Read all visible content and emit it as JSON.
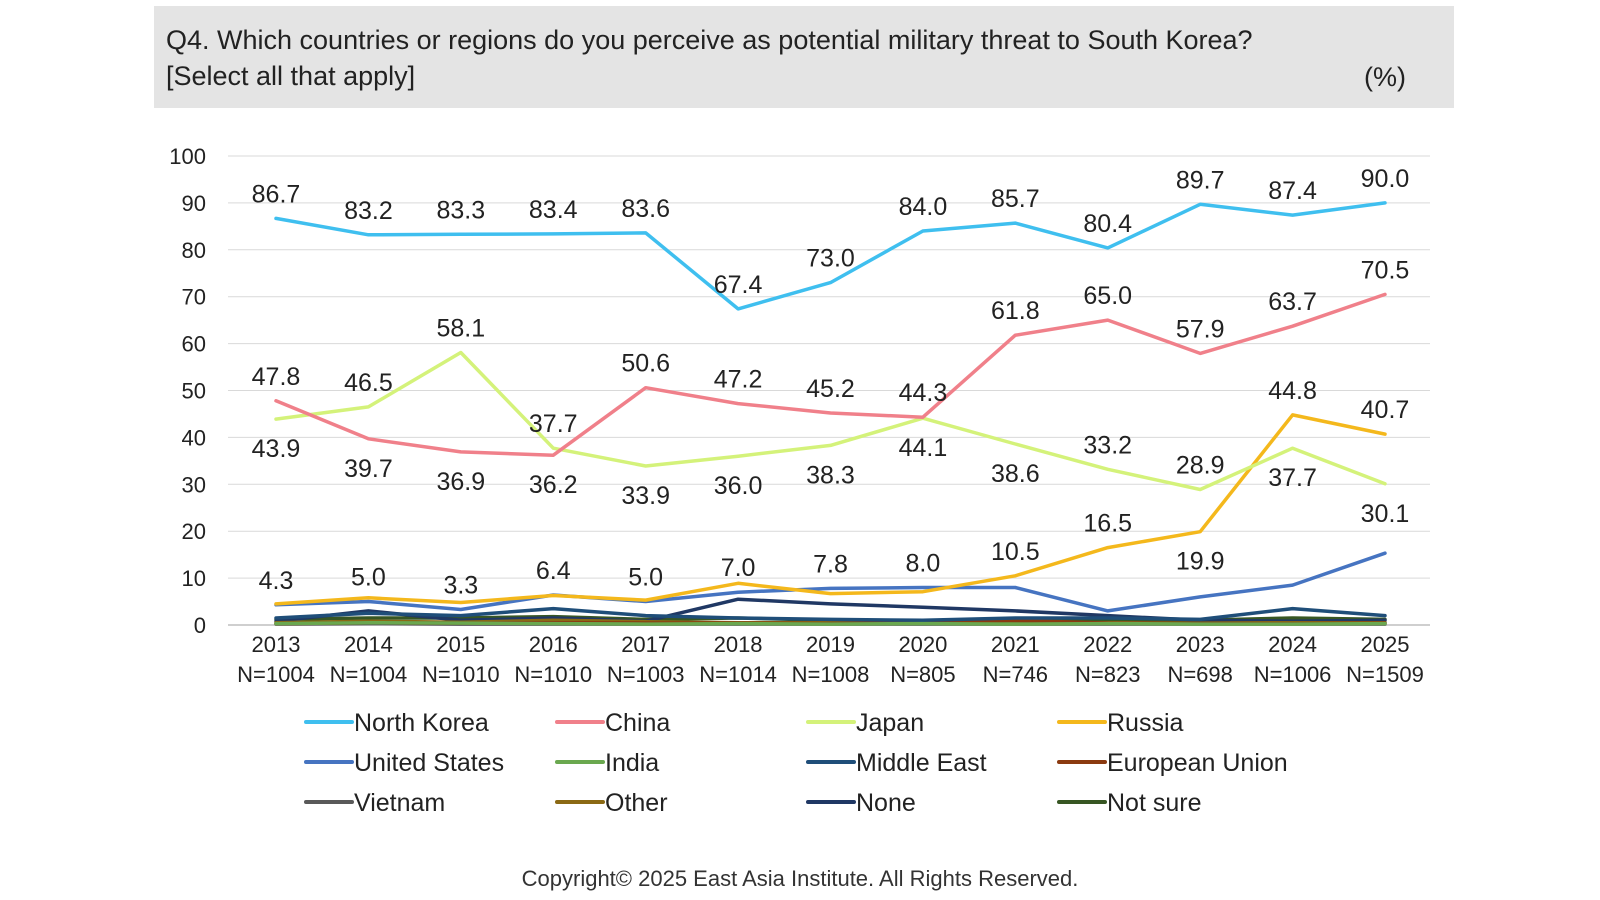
{
  "header": {
    "title_line1": "Q4. Which countries or regions do you perceive as potential military threat to South Korea?",
    "title_line2": "[Select all that apply]",
    "unit": "(%)"
  },
  "footer": {
    "copyright": "Copyright© 2025 East Asia Institute. All Rights Reserved."
  },
  "chart_data": {
    "type": "line",
    "categories": [
      "2013",
      "2014",
      "2015",
      "2016",
      "2017",
      "2018",
      "2019",
      "2020",
      "2021",
      "2022",
      "2023",
      "2024",
      "2025"
    ],
    "sample_sizes": [
      "N=1004",
      "N=1004",
      "N=1010",
      "N=1010",
      "N=1003",
      "N=1014",
      "N=1008",
      "N=805",
      "N=746",
      "N=823",
      "N=698",
      "N=1006",
      "N=1509"
    ],
    "ylim": [
      0,
      100
    ],
    "yticks": [
      "0",
      "10",
      "20",
      "30",
      "40",
      "50",
      "60",
      "70",
      "80",
      "90",
      "100"
    ],
    "grid": true,
    "legend_position": "bottom",
    "series": [
      {
        "name": "North Korea",
        "color": "#3fbfef",
        "labels_shown": true,
        "label_pos": [
          "above",
          "above",
          "above",
          "above",
          "above",
          "above",
          "above",
          "above",
          "above",
          "above",
          "above",
          "above",
          "above"
        ],
        "values": [
          86.7,
          83.2,
          83.3,
          83.4,
          83.6,
          67.4,
          73.0,
          84.0,
          85.7,
          80.4,
          89.7,
          87.4,
          90.0
        ]
      },
      {
        "name": "China",
        "color": "#f0808a",
        "labels_shown": true,
        "label_pos": [
          "above",
          "below",
          "below",
          "below",
          "above",
          "above",
          "above",
          "above",
          "above",
          "above",
          "above",
          "above",
          "above"
        ],
        "values": [
          47.8,
          39.7,
          36.9,
          36.2,
          50.6,
          47.2,
          45.2,
          44.3,
          61.8,
          65.0,
          57.9,
          63.7,
          70.5
        ]
      },
      {
        "name": "Japan",
        "color": "#d4f27a",
        "labels_shown": true,
        "label_pos": [
          "below",
          "above",
          "above",
          "above",
          "below",
          "below",
          "below",
          "below",
          "below",
          "above",
          "above",
          "below",
          "below"
        ],
        "values": [
          43.9,
          46.5,
          58.1,
          37.7,
          33.9,
          36.0,
          38.3,
          44.1,
          38.6,
          33.2,
          28.9,
          37.7,
          30.1
        ]
      },
      {
        "name": "Russia",
        "color": "#f4b81c",
        "labels_shown": true,
        "label_pos": [
          "",
          "",
          "",
          "",
          "",
          "",
          "",
          "",
          "above",
          "above",
          "below",
          "above",
          "above"
        ],
        "values": [
          4.5,
          5.8,
          4.8,
          6.3,
          5.3,
          8.9,
          6.7,
          7.1,
          10.5,
          16.5,
          19.9,
          44.8,
          40.7
        ]
      },
      {
        "name": "United States",
        "color": "#4674c1",
        "labels_shown": true,
        "label_pos": [
          "above",
          "above",
          "above",
          "above",
          "above",
          "above",
          "above",
          "above",
          "",
          "",
          "",
          "",
          ""
        ],
        "values": [
          4.3,
          5.0,
          3.3,
          6.4,
          5.0,
          7.0,
          7.8,
          8.0,
          8.0,
          3.0,
          6.0,
          8.5,
          15.3
        ]
      },
      {
        "name": "India",
        "color": "#6aa84f",
        "labels_shown": false,
        "values": [
          0.3,
          0.5,
          0.4,
          0.3,
          0.2,
          0.3,
          0.2,
          0.3,
          0.2,
          0.3,
          0.2,
          0.2,
          0.3
        ]
      },
      {
        "name": "Middle East",
        "color": "#1f4e79",
        "labels_shown": false,
        "values": [
          1.5,
          2.5,
          2.0,
          3.5,
          2.0,
          1.5,
          1.2,
          1.0,
          1.5,
          1.5,
          1.2,
          3.5,
          2.0
        ]
      },
      {
        "name": "European Union",
        "color": "#8b3a10",
        "labels_shown": false,
        "values": [
          0.3,
          0.5,
          0.4,
          0.5,
          0.4,
          0.4,
          0.3,
          0.5,
          1.0,
          0.4,
          0.3,
          0.3,
          0.4
        ]
      },
      {
        "name": "Vietnam",
        "color": "#595959",
        "labels_shown": false,
        "values": [
          0.2,
          0.3,
          0.2,
          0.2,
          0.2,
          0.2,
          0.2,
          0.2,
          0.2,
          0.2,
          0.2,
          0.2,
          0.2
        ]
      },
      {
        "name": "Other",
        "color": "#8b6914",
        "labels_shown": false,
        "values": [
          0.5,
          0.8,
          0.6,
          1.0,
          0.7,
          0.5,
          0.5,
          0.6,
          0.5,
          0.5,
          0.4,
          0.5,
          0.5
        ]
      },
      {
        "name": "None",
        "color": "#203864",
        "labels_shown": false,
        "values": [
          0.8,
          3.0,
          1.0,
          1.5,
          0.8,
          5.5,
          4.5,
          3.8,
          3.0,
          2.0,
          1.0,
          0.8,
          1.0
        ]
      },
      {
        "name": "Not sure",
        "color": "#375623",
        "labels_shown": false,
        "values": [
          1.2,
          1.5,
          1.5,
          1.8,
          1.2,
          1.5,
          1.0,
          1.0,
          1.0,
          1.2,
          1.0,
          1.5,
          1.2
        ]
      }
    ]
  }
}
